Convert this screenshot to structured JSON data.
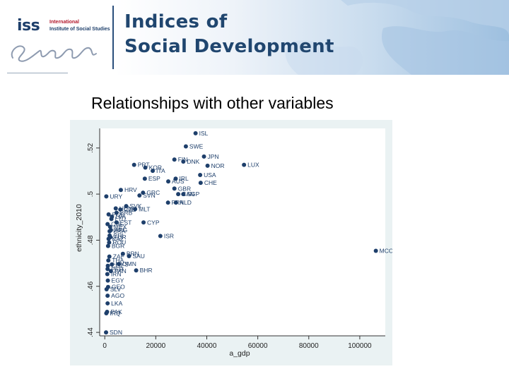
{
  "header": {
    "logo_abbrev": "iss",
    "logo_line1": "International",
    "logo_line2": "Institute of Social Studies",
    "logo_signature": "Erafus",
    "banner_line1": "Indices of",
    "banner_line2": "Social Development"
  },
  "slide_title": "Relationships with other variables",
  "colors": {
    "marker": "#1e3f6b",
    "panel": "#eaf2f3",
    "plot": "#ffffff",
    "banner_text": "#20466f"
  },
  "chart_data": {
    "type": "scatter",
    "xlabel": "a_gdp",
    "ylabel": "ethnicity_2010",
    "xlim": [
      -2000,
      110000
    ],
    "ylim": [
      0.4385,
      0.5285
    ],
    "xticks": [
      0,
      20000,
      40000,
      60000,
      80000,
      100000
    ],
    "yticks": [
      0.44,
      0.46,
      0.48,
      0.5,
      0.52
    ],
    "ytick_labels": [
      ".44",
      ".46",
      ".48",
      ".5",
      ".52"
    ],
    "grid": false,
    "points": [
      {
        "label": "ISL",
        "x": 35600,
        "y": 0.5264
      },
      {
        "label": "SWE",
        "x": 31800,
        "y": 0.5207
      },
      {
        "label": "JPN",
        "x": 38900,
        "y": 0.5163
      },
      {
        "label": "FIN",
        "x": 27300,
        "y": 0.515
      },
      {
        "label": "DNK",
        "x": 30800,
        "y": 0.5141
      },
      {
        "label": "NOR",
        "x": 40300,
        "y": 0.5123
      },
      {
        "label": "LUX",
        "x": 54600,
        "y": 0.5127
      },
      {
        "label": "PRT",
        "x": 11500,
        "y": 0.5127
      },
      {
        "label": "KOR",
        "x": 15900,
        "y": 0.5115
      },
      {
        "label": "ITA",
        "x": 18800,
        "y": 0.5101
      },
      {
        "label": "USA",
        "x": 37400,
        "y": 0.5083
      },
      {
        "label": "ESP",
        "x": 15700,
        "y": 0.5067
      },
      {
        "label": "IRL",
        "x": 27800,
        "y": 0.5067
      },
      {
        "label": "AUS",
        "x": 24900,
        "y": 0.5055
      },
      {
        "label": "CHE",
        "x": 37600,
        "y": 0.5049
      },
      {
        "label": "HRV",
        "x": 6300,
        "y": 0.5018
      },
      {
        "label": "GBR",
        "x": 27300,
        "y": 0.5024
      },
      {
        "label": "GRC",
        "x": 15000,
        "y": 0.5006
      },
      {
        "label": "CAN",
        "x": 28800,
        "y": 0.5
      },
      {
        "label": "SGP",
        "x": 30800,
        "y": 0.5
      },
      {
        "label": "SVN",
        "x": 13600,
        "y": 0.4994
      },
      {
        "label": "URY",
        "x": 600,
        "y": 0.499
      },
      {
        "label": "FRA",
        "x": 24800,
        "y": 0.4963
      },
      {
        "label": "NLD",
        "x": 27900,
        "y": 0.4963
      },
      {
        "label": "SVK",
        "x": 8400,
        "y": 0.4948
      },
      {
        "label": "HUN",
        "x": 4300,
        "y": 0.4938
      },
      {
        "label": "MLT",
        "x": 11900,
        "y": 0.4935
      },
      {
        "label": "CZE",
        "x": 6100,
        "y": 0.4933
      },
      {
        "label": "BRB",
        "x": 4600,
        "y": 0.4919
      },
      {
        "label": "POL",
        "x": 1500,
        "y": 0.4912
      },
      {
        "label": "LVA",
        "x": 2800,
        "y": 0.4902
      },
      {
        "label": "LTU",
        "x": 2600,
        "y": 0.4892
      },
      {
        "label": "EST",
        "x": 4600,
        "y": 0.4877
      },
      {
        "label": "CYP",
        "x": 15200,
        "y": 0.4877
      },
      {
        "label": "CHL",
        "x": 1100,
        "y": 0.487
      },
      {
        "label": "MEX",
        "x": 2100,
        "y": 0.4858
      },
      {
        "label": "ARG",
        "x": 2400,
        "y": 0.4844
      },
      {
        "label": "BRA",
        "x": 1900,
        "y": 0.4839
      },
      {
        "label": "ISR",
        "x": 21800,
        "y": 0.4818
      },
      {
        "label": "CRI",
        "x": 1900,
        "y": 0.482
      },
      {
        "label": "TUR",
        "x": 2200,
        "y": 0.4813
      },
      {
        "label": "KAZ",
        "x": 1500,
        "y": 0.4806
      },
      {
        "label": "ROU",
        "x": 1700,
        "y": 0.479
      },
      {
        "label": "BGR",
        "x": 1300,
        "y": 0.4775
      },
      {
        "label": "MCO",
        "x": 106300,
        "y": 0.4754
      },
      {
        "label": "BRN",
        "x": 7100,
        "y": 0.4741
      },
      {
        "label": "SAU",
        "x": 9500,
        "y": 0.4731
      },
      {
        "label": "ZAF",
        "x": 1800,
        "y": 0.4729
      },
      {
        "label": "THA",
        "x": 1400,
        "y": 0.4712
      },
      {
        "label": "OMN",
        "x": 5500,
        "y": 0.4697
      },
      {
        "label": "MYS",
        "x": 2800,
        "y": 0.4695
      },
      {
        "label": "COL",
        "x": 1200,
        "y": 0.4689
      },
      {
        "label": "BHR",
        "x": 12300,
        "y": 0.4669
      },
      {
        "label": "PER",
        "x": 1100,
        "y": 0.4675
      },
      {
        "label": "PAN",
        "x": 2400,
        "y": 0.4666
      },
      {
        "label": "IRN",
        "x": 1000,
        "y": 0.4653
      },
      {
        "label": "EGY",
        "x": 1200,
        "y": 0.4625
      },
      {
        "label": "GEO",
        "x": 1300,
        "y": 0.4597
      },
      {
        "label": "SLV",
        "x": 700,
        "y": 0.4587
      },
      {
        "label": "AGO",
        "x": 1100,
        "y": 0.4559
      },
      {
        "label": "LKA",
        "x": 1100,
        "y": 0.4526
      },
      {
        "label": "PAK",
        "x": 900,
        "y": 0.4489
      },
      {
        "label": "IRQ",
        "x": 600,
        "y": 0.4483
      },
      {
        "label": "SDN",
        "x": 500,
        "y": 0.44
      }
    ]
  }
}
